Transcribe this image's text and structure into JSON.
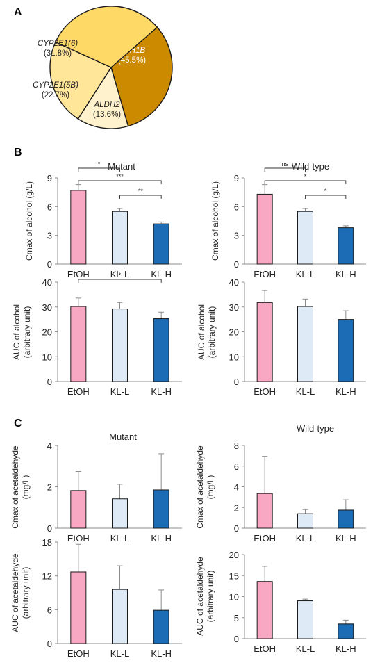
{
  "panels": {
    "A": "A",
    "B": "B",
    "C": "C"
  },
  "colors": {
    "EtOH": "#f9a8c4",
    "KL-L": "#deebf7",
    "KL-H": "#1c6cb5",
    "ADH1B": "#cc8a00",
    "ALDH2": "#fff2cc",
    "CYP2E1(5B)": "#ffe699",
    "CYP2E1(6)": "#ffd966"
  },
  "chart_data": [
    {
      "id": "pie",
      "type": "pie",
      "slices": [
        {
          "label": "ADH1B",
          "value": 45.5,
          "pct_label": "(45.5%)",
          "color": "#cc8a00",
          "text_color": "#ffffff"
        },
        {
          "label": "ALDH2",
          "value": 13.6,
          "pct_label": "(13.6%)",
          "color": "#fff2cc",
          "text_color": "#222222"
        },
        {
          "label": "CYP2E1(5B)",
          "value": 22.7,
          "pct_label": "(22.7%)",
          "color": "#ffe699",
          "text_color": "#222222"
        },
        {
          "label": "CYP2E1(6)",
          "value": 31.8,
          "pct_label": "(31.8%)",
          "color": "#ffd966",
          "text_color": "#222222"
        }
      ]
    },
    {
      "id": "b1",
      "type": "bar",
      "title": "Mutant",
      "ylabel": [
        "Cmax of alcohol (g/L)"
      ],
      "categories": [
        "EtOH",
        "KL-L",
        "KL-H"
      ],
      "values": [
        7.7,
        5.5,
        4.2
      ],
      "errors": [
        0.6,
        0.3,
        0.2
      ],
      "ylim": [
        0,
        9
      ],
      "ticks": [
        0,
        3,
        6,
        9
      ],
      "brackets": [
        {
          "from": 0,
          "to": 1,
          "label": "*"
        },
        {
          "from": 0,
          "to": 2,
          "label": "***"
        },
        {
          "from": 1,
          "to": 2,
          "label": "**"
        }
      ]
    },
    {
      "id": "b2",
      "type": "bar",
      "title": "Wild-type",
      "ylabel": [
        "Cmax of alcohol (g/L)"
      ],
      "categories": [
        "EtOH",
        "KL-L",
        "KL-H"
      ],
      "values": [
        7.3,
        5.5,
        3.8
      ],
      "errors": [
        1.0,
        0.3,
        0.2
      ],
      "ylim": [
        0,
        9
      ],
      "ticks": [
        0,
        3,
        6,
        9
      ],
      "brackets": [
        {
          "from": 0,
          "to": 1,
          "label": "ns"
        },
        {
          "from": 0,
          "to": 2,
          "label": "*"
        },
        {
          "from": 1,
          "to": 2,
          "label": "*"
        }
      ]
    },
    {
      "id": "b3",
      "type": "bar",
      "ylabel": [
        "AUC of alcohol",
        "(arbitrary unit)"
      ],
      "categories": [
        "EtOH",
        "KL-L",
        "KL-H"
      ],
      "values": [
        30.2,
        29.2,
        25.3
      ],
      "errors": [
        3.4,
        2.6,
        2.6
      ],
      "ylim": [
        0,
        40
      ],
      "ticks": [
        0,
        10,
        20,
        30,
        40
      ],
      "brackets": [
        {
          "from": 0,
          "to": 2,
          "label": "*"
        }
      ]
    },
    {
      "id": "b4",
      "type": "bar",
      "ylabel": [
        "AUC of alcohol",
        "(arbitrary unit)"
      ],
      "categories": [
        "EtOH",
        "KL-L",
        "KL-H"
      ],
      "values": [
        31.8,
        30.2,
        25.0
      ],
      "errors": [
        4.8,
        3.0,
        3.5
      ],
      "ylim": [
        0,
        40
      ],
      "ticks": [
        0,
        10,
        20,
        30,
        40
      ],
      "brackets": []
    },
    {
      "id": "c1",
      "type": "bar",
      "title": "Mutant",
      "ylabel": [
        "Cmax of acetaldehyde",
        "(mg/L)"
      ],
      "categories": [
        "EtOH",
        "KL-L",
        "KL-H"
      ],
      "values": [
        1.82,
        1.42,
        1.85
      ],
      "errors": [
        0.92,
        0.7,
        1.75
      ],
      "ylim": [
        0,
        4
      ],
      "ticks": [
        0,
        2,
        4
      ],
      "brackets": []
    },
    {
      "id": "c2",
      "type": "bar",
      "title": "Wild-type",
      "ylabel": [
        "Cmax of acetaldehyde",
        "(mg/L)"
      ],
      "categories": [
        "EtOH",
        "KL-L",
        "KL-H"
      ],
      "values": [
        3.35,
        1.4,
        1.75
      ],
      "errors": [
        3.6,
        0.4,
        1.0
      ],
      "ylim": [
        0,
        8
      ],
      "ticks": [
        0,
        2,
        4,
        6,
        8
      ],
      "brackets": []
    },
    {
      "id": "c3",
      "type": "bar",
      "ylabel": [
        "AUC of acetaldehyde",
        "(arbitrary unit)"
      ],
      "categories": [
        "EtOH",
        "KL-L",
        "KL-H"
      ],
      "values": [
        12.7,
        9.6,
        5.9
      ],
      "errors": [
        4.9,
        4.2,
        3.6
      ],
      "ylim": [
        0,
        18
      ],
      "ticks": [
        0,
        6,
        12,
        18
      ],
      "brackets": []
    },
    {
      "id": "c4",
      "type": "bar",
      "ylabel": [
        "AUC of acetaldehyde",
        "(arbitrary unit)"
      ],
      "categories": [
        "EtOH",
        "KL-L",
        "KL-H"
      ],
      "values": [
        13.6,
        9.0,
        3.5
      ],
      "errors": [
        3.6,
        0.4,
        0.9
      ],
      "ylim": [
        0,
        20
      ],
      "ticks": [
        0,
        5,
        10,
        15,
        20
      ],
      "brackets": []
    }
  ]
}
